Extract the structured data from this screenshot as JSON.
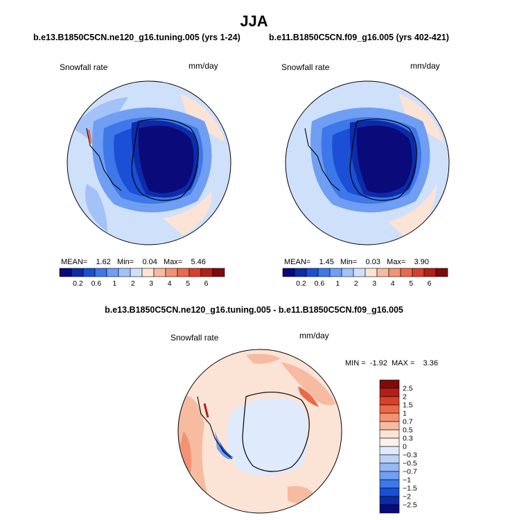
{
  "page_title": "JJA",
  "panels": [
    {
      "case": "b.e13.B1850C5CN.ne120_g16.tuning.005 (yrs 1-24)",
      "variable": "Snowfall rate",
      "units": "mm/day",
      "stats": {
        "mean_label": "MEAN=",
        "mean": "1.62",
        "min_label": "Min=",
        "min": "0.04",
        "max_label": "Max=",
        "max": "5.46"
      }
    },
    {
      "case": "b.e11.B1850C5CN.f09_g16.005 (yrs 402-421)",
      "variable": "Snowfall rate",
      "units": "mm/day",
      "stats": {
        "mean_label": "MEAN=",
        "mean": "1.45",
        "min_label": "Min=",
        "min": "0.03",
        "max_label": "Max=",
        "max": "3.90"
      }
    }
  ],
  "diff_panel": {
    "title": "b.e13.B1850C5CN.ne120_g16.tuning.005 - b.e11.B1850C5CN.f09_g16.005",
    "variable": "Snowfall rate",
    "units": "mm/day",
    "stats": {
      "min_label": "MIN =",
      "min": "-1.92",
      "max_label": "MAX =",
      "max": "3.36"
    }
  },
  "chart_data": [
    {
      "type": "heatmap",
      "title": "b.e13.B1850C5CN.ne120_g16.tuning.005 (yrs 1-24)",
      "projection": "south-polar-stereographic",
      "variable": "Snowfall rate",
      "units": "mm/day",
      "colorbar_levels": [
        "0.2",
        "0.6",
        "1",
        "2",
        "3",
        "4",
        "5",
        "6"
      ],
      "colorbar_colors": [
        "#0a0a7a",
        "#0d2ba8",
        "#1a4fd6",
        "#3d78ea",
        "#6f9ef2",
        "#a3c2f7",
        "#cfe0fb",
        "#fbe3d6",
        "#f6bba1",
        "#f29373",
        "#e96a48",
        "#d8402a",
        "#b31f17",
        "#7f0a0a"
      ],
      "mean": 1.62,
      "min": 0.04,
      "max": 5.46
    },
    {
      "type": "heatmap",
      "title": "b.e11.B1850C5CN.f09_g16.005 (yrs 402-421)",
      "projection": "south-polar-stereographic",
      "variable": "Snowfall rate",
      "units": "mm/day",
      "colorbar_levels": [
        "0.2",
        "0.6",
        "1",
        "2",
        "3",
        "4",
        "5",
        "6"
      ],
      "colorbar_colors": [
        "#0a0a7a",
        "#0d2ba8",
        "#1a4fd6",
        "#3d78ea",
        "#6f9ef2",
        "#a3c2f7",
        "#cfe0fb",
        "#fbe3d6",
        "#f6bba1",
        "#f29373",
        "#e96a48",
        "#d8402a",
        "#b31f17",
        "#7f0a0a"
      ],
      "mean": 1.45,
      "min": 0.03,
      "max": 3.9
    },
    {
      "type": "heatmap",
      "title": "b.e13.B1850C5CN.ne120_g16.tuning.005 - b.e11.B1850C5CN.f09_g16.005",
      "projection": "south-polar-stereographic",
      "variable": "Snowfall rate",
      "units": "mm/day",
      "colorbar_levels": [
        "2.5",
        "2",
        "1.5",
        "1",
        "0.7",
        "0.5",
        "0.3",
        "0",
        "−0.3",
        "−0.5",
        "−0.7",
        "−1",
        "−1.5",
        "−2",
        "−2.5"
      ],
      "colorbar_colors": [
        "#7f0a0a",
        "#b31f17",
        "#d8402a",
        "#e96a48",
        "#f29373",
        "#f6bba1",
        "#fbe3d6",
        "#fdf1ea",
        "#dfeafc",
        "#bcd3f8",
        "#96b8f3",
        "#6f9ef2",
        "#3d78ea",
        "#1a4fd6",
        "#0d2ba8",
        "#0a0a7a"
      ],
      "min": -1.92,
      "max": 3.36
    }
  ]
}
